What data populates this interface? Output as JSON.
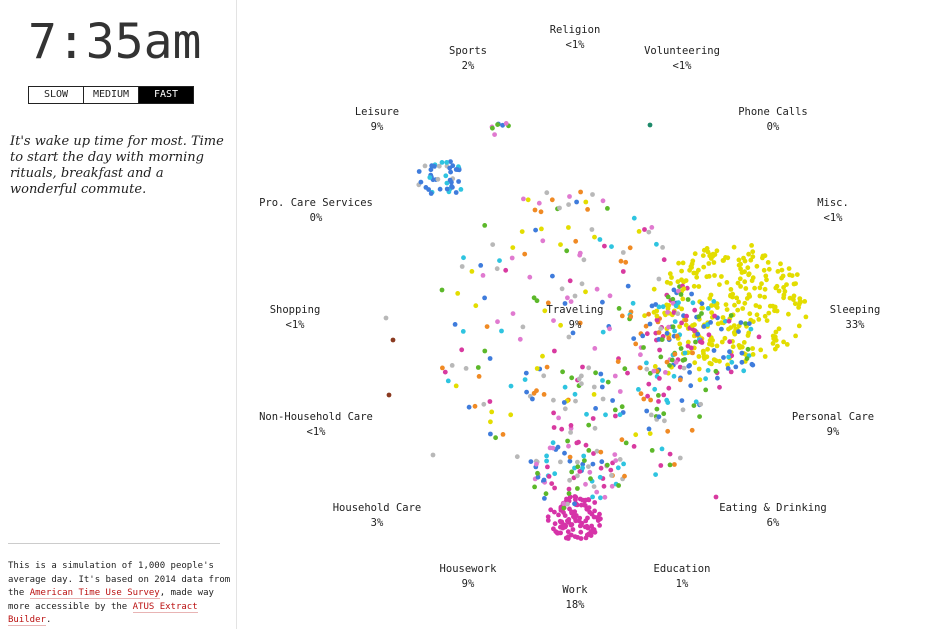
{
  "clock": {
    "time": "7:35am"
  },
  "speed": {
    "buttons": [
      "SLOW",
      "MEDIUM",
      "FAST"
    ],
    "active": "FAST"
  },
  "description": "It's wake up time for most. Time to start the day with morning rituals, breakfast and a wonderful commute.",
  "about": {
    "text1": "This is a simulation of 1,000 people's average day. It's based on 2014 data from the ",
    "link1": "American Time Use Survey",
    "text2": ", made way more accessible by the ",
    "link2": "ATUS Extract Builder",
    "text3": "."
  },
  "chart_data": {
    "type": "scatter",
    "title": "",
    "total_people": 1000,
    "activities": [
      {
        "name": "Religion",
        "pct": "<1%"
      },
      {
        "name": "Sports",
        "pct": "2%"
      },
      {
        "name": "Volunteering",
        "pct": "<1%"
      },
      {
        "name": "Leisure",
        "pct": "9%"
      },
      {
        "name": "Phone Calls",
        "pct": "0%"
      },
      {
        "name": "Pro. Care Services",
        "pct": "0%"
      },
      {
        "name": "Misc.",
        "pct": "<1%"
      },
      {
        "name": "Shopping",
        "pct": "<1%"
      },
      {
        "name": "Traveling",
        "pct": "9%"
      },
      {
        "name": "Sleeping",
        "pct": "33%"
      },
      {
        "name": "Non-Household Care",
        "pct": "<1%"
      },
      {
        "name": "Personal Care",
        "pct": "9%"
      },
      {
        "name": "Household Care",
        "pct": "3%"
      },
      {
        "name": "Eating & Drinking",
        "pct": "6%"
      },
      {
        "name": "Housework",
        "pct": "9%"
      },
      {
        "name": "Education",
        "pct": "1%"
      },
      {
        "name": "Work",
        "pct": "18%"
      }
    ],
    "colors": {
      "sleeping": "#e3dd00",
      "work": "#d633a8",
      "traveling": "#b8b8b8",
      "blue": "#3f7cdc",
      "cyan": "#2ec4e0",
      "magenta": "#d83aa0",
      "pink": "#e07ad0",
      "green": "#5cb82a",
      "orange": "#f08a24",
      "brown": "#8a3a20",
      "teal": "#1e8a6a"
    }
  }
}
